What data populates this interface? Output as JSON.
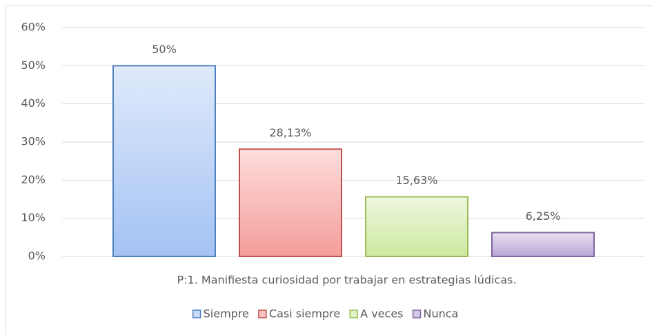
{
  "chart_data": {
    "type": "bar",
    "categories": [
      "P:1. Manifiesta curiosidad por trabajar en estrategias lúdicas."
    ],
    "series": [
      {
        "name": "Siempre",
        "color": "#a4c2f4",
        "border_color": "#4f81bd",
        "values": [
          50
        ],
        "value_labels": [
          "50%"
        ]
      },
      {
        "name": "Casi siempre",
        "color": "#f59d9a",
        "border_color": "#c0504d",
        "values": [
          28.13
        ],
        "value_labels": [
          "28,13%"
        ]
      },
      {
        "name": "A veces",
        "color": "#cde9a0",
        "border_color": "#9bbb59",
        "values": [
          15.63
        ],
        "value_labels": [
          "15,63%"
        ]
      },
      {
        "name": "Nunca",
        "color": "#b9a6d6",
        "border_color": "#8064a2",
        "values": [
          6.25
        ],
        "value_labels": [
          "6,25%"
        ]
      }
    ],
    "ylim": [
      0,
      60
    ],
    "yticks": [
      {
        "value": 0,
        "label": "0%"
      },
      {
        "value": 10,
        "label": "10%"
      },
      {
        "value": 20,
        "label": "20%"
      },
      {
        "value": 30,
        "label": "30%"
      },
      {
        "value": 40,
        "label": "40%"
      },
      {
        "value": 50,
        "label": "50%"
      },
      {
        "value": 60,
        "label": "60%"
      }
    ],
    "grid": true,
    "legend": "bottom"
  }
}
